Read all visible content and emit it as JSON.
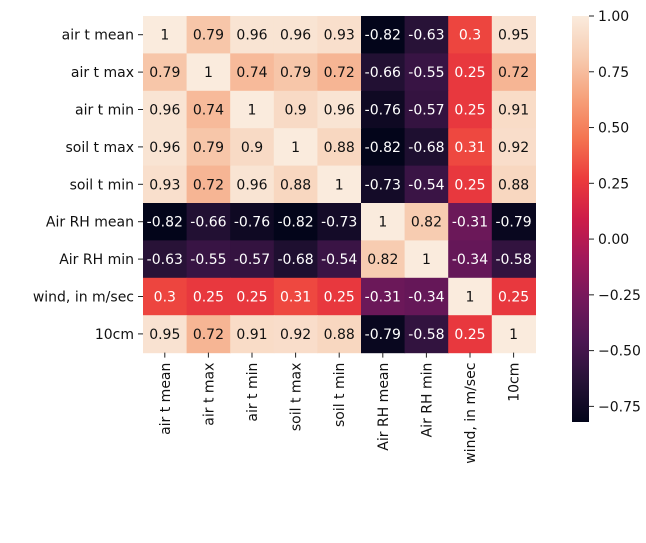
{
  "chart_data": {
    "type": "heatmap",
    "rows": [
      "air t mean",
      "air t max",
      "air t min",
      "soil t max",
      "soil t min",
      "Air RH mean",
      "Air RH min",
      "wind, in m/sec",
      "10cm"
    ],
    "columns": [
      "air t mean",
      "air t max",
      "air t min",
      "soil t max",
      "soil t min",
      "Air RH mean",
      "Air RH min",
      "wind, in m/sec",
      "10cm"
    ],
    "values": [
      [
        1,
        0.79,
        0.96,
        0.96,
        0.93,
        -0.82,
        -0.63,
        0.3,
        0.95
      ],
      [
        0.79,
        1,
        0.74,
        0.79,
        0.72,
        -0.66,
        -0.55,
        0.25,
        0.72
      ],
      [
        0.96,
        0.74,
        1,
        0.9,
        0.96,
        -0.76,
        -0.57,
        0.25,
        0.91
      ],
      [
        0.96,
        0.79,
        0.9,
        1,
        0.88,
        -0.82,
        -0.68,
        0.31,
        0.92
      ],
      [
        0.93,
        0.72,
        0.96,
        0.88,
        1,
        -0.73,
        -0.54,
        0.25,
        0.88
      ],
      [
        -0.82,
        -0.66,
        -0.76,
        -0.82,
        -0.73,
        1,
        0.82,
        -0.31,
        -0.79
      ],
      [
        -0.63,
        -0.55,
        -0.57,
        -0.68,
        -0.54,
        0.82,
        1,
        -0.34,
        -0.58
      ],
      [
        0.3,
        0.25,
        0.25,
        0.31,
        0.25,
        -0.31,
        -0.34,
        1,
        0.25
      ],
      [
        0.95,
        0.72,
        0.91,
        0.92,
        0.88,
        -0.79,
        -0.58,
        0.25,
        1
      ]
    ],
    "colorbar": {
      "range": [
        -0.82,
        1.0
      ],
      "ticks": [
        1.0,
        0.75,
        0.5,
        0.25,
        0.0,
        -0.25,
        -0.5,
        -0.75
      ],
      "tick_labels": [
        "1.00",
        "0.75",
        "0.50",
        "0.25",
        "0.00",
        "−0.25",
        "−0.50",
        "−0.75"
      ]
    },
    "colormap": "rocket"
  }
}
